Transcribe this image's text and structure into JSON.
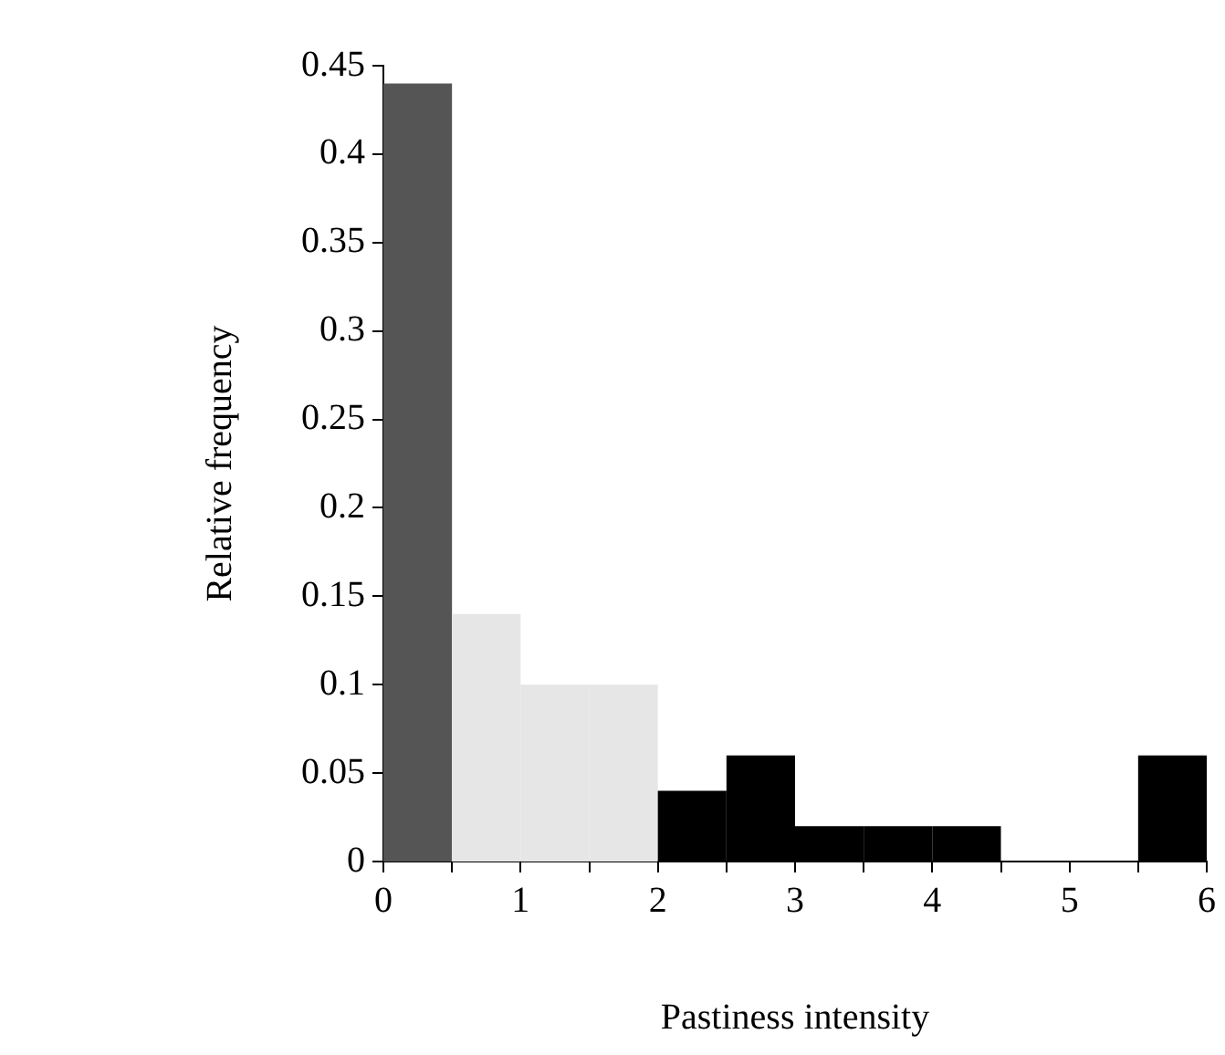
{
  "chart_data": {
    "type": "histogram",
    "xlabel": "Pastiness intensity",
    "ylabel": "Relative frequency",
    "bins": [
      0,
      0.5,
      1,
      1.5,
      2,
      2.5,
      3,
      3.5,
      4,
      4.5,
      5,
      5.5,
      6
    ],
    "values": [
      0.44,
      0.14,
      0.1,
      0.1,
      0.04,
      0.06,
      0.02,
      0.02,
      0.02,
      0,
      0,
      0.06
    ],
    "colors": [
      "#555555",
      "#e6e6e6",
      "#e6e6e6",
      "#e6e6e6",
      "#000000",
      "#000000",
      "#000000",
      "#000000",
      "#000000",
      "#000000",
      "#000000",
      "#000000"
    ],
    "xlim": [
      0,
      6
    ],
    "xticks": [
      0,
      {
        "value": 0.5,
        "label": null
      },
      1,
      {
        "value": 1.5,
        "label": null
      },
      2,
      {
        "value": 2.5,
        "label": null
      },
      3,
      {
        "value": 3.5,
        "label": null
      },
      4,
      {
        "value": 4.5,
        "label": null
      },
      5,
      {
        "value": 5.5,
        "label": null
      },
      6
    ],
    "ylim": [
      0,
      0.45
    ],
    "yticks": [
      0,
      0.05,
      0.1,
      0.15,
      0.2,
      0.25,
      0.3,
      0.35,
      0.4,
      0.45
    ],
    "grid": false,
    "legend": false
  }
}
